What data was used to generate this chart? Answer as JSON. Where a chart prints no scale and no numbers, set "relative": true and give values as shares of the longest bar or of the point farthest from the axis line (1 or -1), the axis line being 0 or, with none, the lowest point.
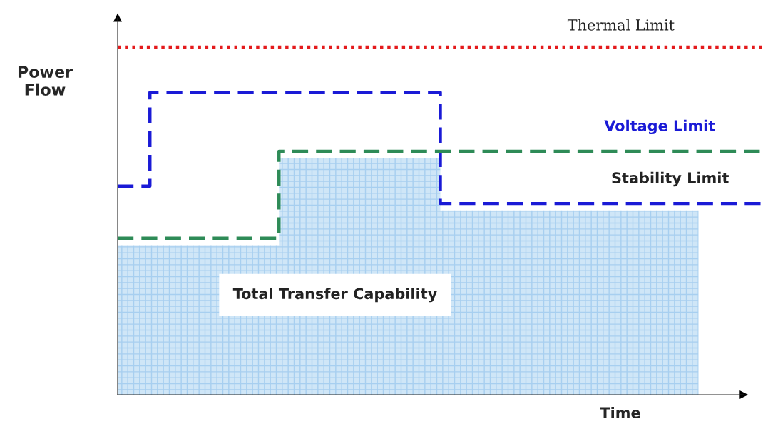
{
  "chart_data": {
    "type": "step",
    "relative": true,
    "xlabel": "Time",
    "ylabel": "Power\nFlow",
    "categories": [
      null,
      null,
      null,
      null,
      null,
      null,
      null,
      null,
      null,
      null,
      null,
      null,
      null,
      null,
      null,
      null,
      null,
      null,
      null,
      null,
      null
    ],
    "series": [
      {
        "name": "Thermal Limit",
        "type": "line",
        "line_style": "dotted",
        "color": "#e41a1c",
        "values": [
          1,
          1,
          1,
          1,
          1,
          1,
          1,
          1,
          1,
          1,
          1,
          1,
          1,
          1,
          1,
          1,
          1,
          1,
          1,
          1,
          1
        ]
      },
      {
        "name": "Voltage Limit",
        "line_style": "dashed",
        "color": "#1a1ad6",
        "values": [
          0.6,
          0.87,
          0.87,
          0.87,
          0.87,
          0.87,
          0.87,
          0.87,
          0.87,
          0.87,
          0.55,
          0.55,
          0.55,
          0.55,
          0.55,
          0.55,
          0.55,
          0.55,
          0.55,
          0.55,
          0.55
        ]
      },
      {
        "name": "Stability Limit",
        "line_style": "dashed",
        "color": "#2e8b57",
        "values": [
          0.45,
          0.45,
          0.45,
          0.45,
          0.45,
          0.7,
          0.7,
          0.7,
          0.7,
          0.7,
          0.7,
          0.7,
          0.7,
          0.7,
          0.7,
          0.7,
          0.7,
          0.7,
          0.7,
          0.7,
          0.7
        ]
      },
      {
        "name": "Total Transfer Capability",
        "type": "area",
        "color": "#cfe6f7",
        "values": [
          0.43,
          0.43,
          0.43,
          0.43,
          0.43,
          0.68,
          0.68,
          0.68,
          0.68,
          0.68,
          0.53,
          0.53,
          0.53,
          0.53,
          0.53,
          0.53,
          0.53,
          0.53,
          0.53,
          null,
          null
        ]
      }
    ]
  }
}
